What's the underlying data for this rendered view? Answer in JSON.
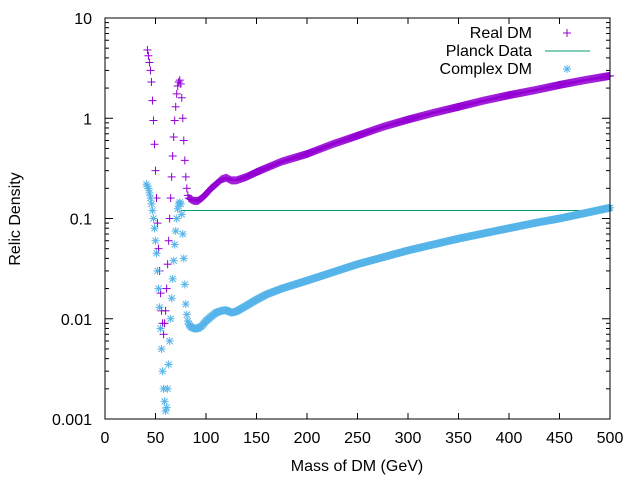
{
  "chart_data": {
    "type": "scatter",
    "xlabel": "Mass of DM (GeV)",
    "ylabel": "Relic Density",
    "xlim": [
      0,
      500
    ],
    "ylim": [
      0.001,
      10
    ],
    "yscale": "log",
    "xticks": [
      0,
      50,
      100,
      150,
      200,
      250,
      300,
      350,
      400,
      450,
      500
    ],
    "yticks": [
      0.001,
      0.01,
      0.1,
      1,
      10
    ],
    "ytick_labels": [
      "0.001",
      "0.01",
      "0.1",
      "1",
      "10"
    ],
    "legend_position": "top-right",
    "series": [
      {
        "name": "Real DM",
        "marker": "+",
        "color": "#9400d3",
        "x": [
          42,
          43,
          44,
          45,
          46,
          47,
          48,
          49,
          50,
          51,
          52,
          53,
          54,
          55,
          56,
          57,
          58,
          59,
          60,
          61,
          62,
          63,
          64,
          65,
          66,
          67,
          68,
          69,
          70,
          71,
          72,
          73,
          74,
          75,
          76,
          77,
          78,
          79,
          80,
          81,
          82,
          83,
          85,
          88,
          92,
          96,
          100,
          105,
          110,
          115,
          120,
          125,
          130,
          140,
          150,
          160,
          175,
          200,
          225,
          250,
          275,
          300,
          325,
          350,
          375,
          400,
          425,
          450,
          475,
          500
        ],
        "y": [
          4.8,
          4.2,
          3.6,
          3.0,
          2.3,
          1.5,
          0.95,
          0.55,
          0.3,
          0.16,
          0.09,
          0.05,
          0.03,
          0.018,
          0.012,
          0.009,
          0.007,
          0.009,
          0.012,
          0.02,
          0.035,
          0.06,
          0.1,
          0.16,
          0.26,
          0.42,
          0.65,
          0.95,
          1.3,
          1.75,
          2.1,
          2.3,
          2.4,
          2.2,
          1.6,
          1.0,
          0.6,
          0.38,
          0.26,
          0.2,
          0.17,
          0.16,
          0.155,
          0.15,
          0.15,
          0.16,
          0.175,
          0.2,
          0.22,
          0.245,
          0.255,
          0.24,
          0.24,
          0.26,
          0.29,
          0.32,
          0.37,
          0.44,
          0.55,
          0.67,
          0.82,
          0.97,
          1.13,
          1.3,
          1.5,
          1.7,
          1.9,
          2.15,
          2.4,
          2.65
        ]
      },
      {
        "name": "Planck Data",
        "marker": "line",
        "color": "#009e73",
        "x": [
          75,
          500
        ],
        "y": [
          0.12,
          0.12
        ]
      },
      {
        "name": "Complex DM",
        "marker": "*",
        "color": "#56b4e9",
        "x": [
          41,
          42,
          43,
          44,
          45,
          46,
          47,
          48,
          49,
          50,
          51,
          52,
          53,
          54,
          55,
          56,
          57,
          58,
          59,
          60,
          61,
          62,
          63,
          64,
          65,
          66,
          67,
          68,
          69,
          70,
          71,
          72,
          73,
          74,
          75,
          76,
          77,
          78,
          79,
          80,
          81,
          82,
          83,
          85,
          88,
          92,
          96,
          100,
          105,
          110,
          115,
          120,
          125,
          130,
          140,
          150,
          160,
          175,
          200,
          225,
          250,
          275,
          300,
          325,
          350,
          375,
          400,
          425,
          450,
          475,
          500
        ],
        "y": [
          0.22,
          0.21,
          0.2,
          0.18,
          0.16,
          0.14,
          0.12,
          0.1,
          0.08,
          0.06,
          0.045,
          0.03,
          0.02,
          0.013,
          0.008,
          0.005,
          0.003,
          0.002,
          0.0015,
          0.0012,
          0.0013,
          0.002,
          0.0035,
          0.006,
          0.01,
          0.016,
          0.025,
          0.038,
          0.055,
          0.075,
          0.1,
          0.125,
          0.14,
          0.145,
          0.14,
          0.11,
          0.07,
          0.04,
          0.022,
          0.014,
          0.011,
          0.0095,
          0.0088,
          0.0083,
          0.008,
          0.008,
          0.0085,
          0.0095,
          0.0105,
          0.0115,
          0.012,
          0.0122,
          0.0115,
          0.0118,
          0.0135,
          0.0155,
          0.0175,
          0.02,
          0.024,
          0.029,
          0.035,
          0.041,
          0.048,
          0.055,
          0.063,
          0.071,
          0.08,
          0.09,
          0.1,
          0.113,
          0.128
        ]
      }
    ]
  }
}
